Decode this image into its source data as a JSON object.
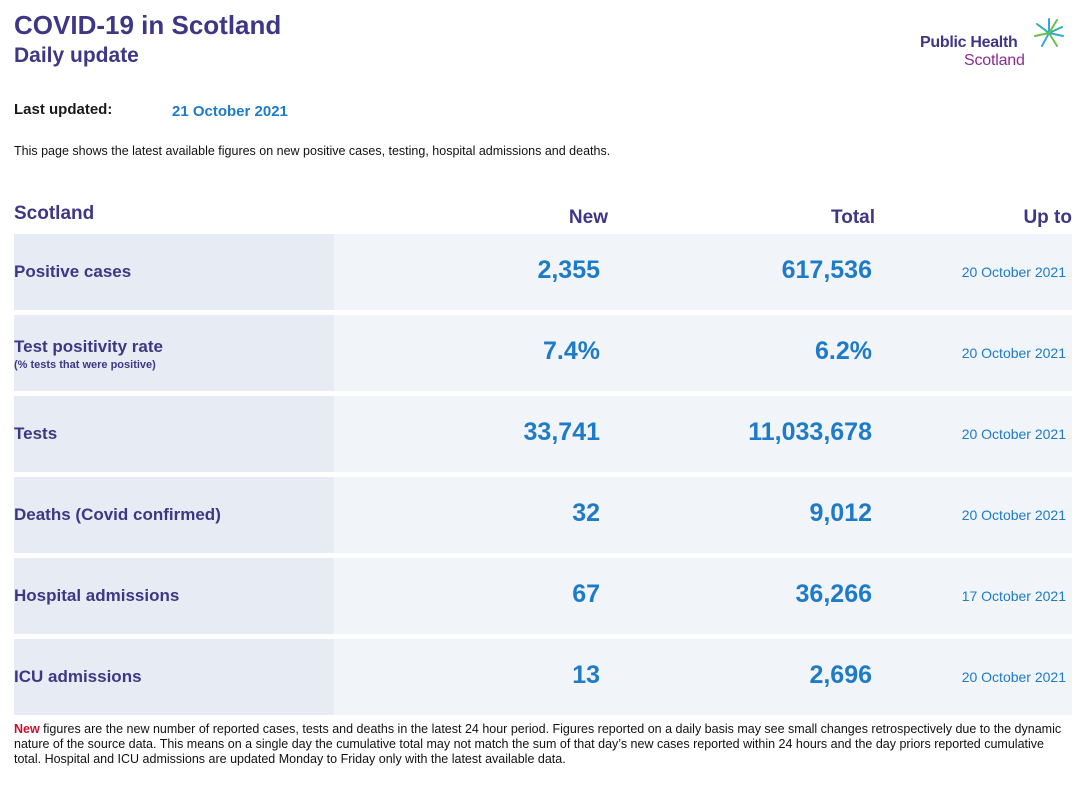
{
  "header": {
    "title": "COVID-19 in Scotland",
    "subtitle": "Daily update",
    "logo_line1": "Public Health",
    "logo_line2": "Scotland"
  },
  "updated": {
    "label": "Last updated:",
    "date": "21 October 2021"
  },
  "intro": "This page shows the latest available figures on new positive cases, testing, hospital admissions and deaths.",
  "table": {
    "headers": {
      "region": "Scotland",
      "new": "New",
      "total": "Total",
      "up_to": "Up to"
    },
    "rows": [
      {
        "label": "Positive cases",
        "sublabel": "",
        "new": "2,355",
        "total": "617,536",
        "up_to": "20 October 2021"
      },
      {
        "label": "Test positivity rate",
        "sublabel": "(% tests that were positive)",
        "new": "7.4%",
        "total": "6.2%",
        "up_to": "20 October 2021"
      },
      {
        "label": "Tests",
        "sublabel": "",
        "new": "33,741",
        "total": "11,033,678",
        "up_to": "20 October 2021"
      },
      {
        "label": "Deaths (Covid confirmed)",
        "sublabel": "",
        "new": "32",
        "total": "9,012",
        "up_to": "20 October 2021"
      },
      {
        "label": "Hospital admissions",
        "sublabel": "",
        "new": "67",
        "total": "36,266",
        "up_to": "17 October 2021"
      },
      {
        "label": "ICU admissions",
        "sublabel": "",
        "new": "13",
        "total": "2,696",
        "up_to": "20 October 2021"
      }
    ]
  },
  "footnote": {
    "highlight": "New",
    "text": " figures are the new number of reported cases, tests and deaths in the latest 24 hour period. Figures reported on a daily basis may see small changes retrospectively due to the dynamic nature of the source data. This means on a single day the cumulative total may not match the sum of that day’s new cases reported within 24 hours and the day priors reported cumulative total. Hospital and ICU admissions are updated Monday to Friday only with the latest available data."
  },
  "colors": {
    "heading_purple": "#3f3685",
    "value_blue": "#1e7bc7",
    "highlight_red": "#c8102e",
    "row_bg": "#f1f4f9",
    "label_cell_bg": "#e7ebf4"
  }
}
